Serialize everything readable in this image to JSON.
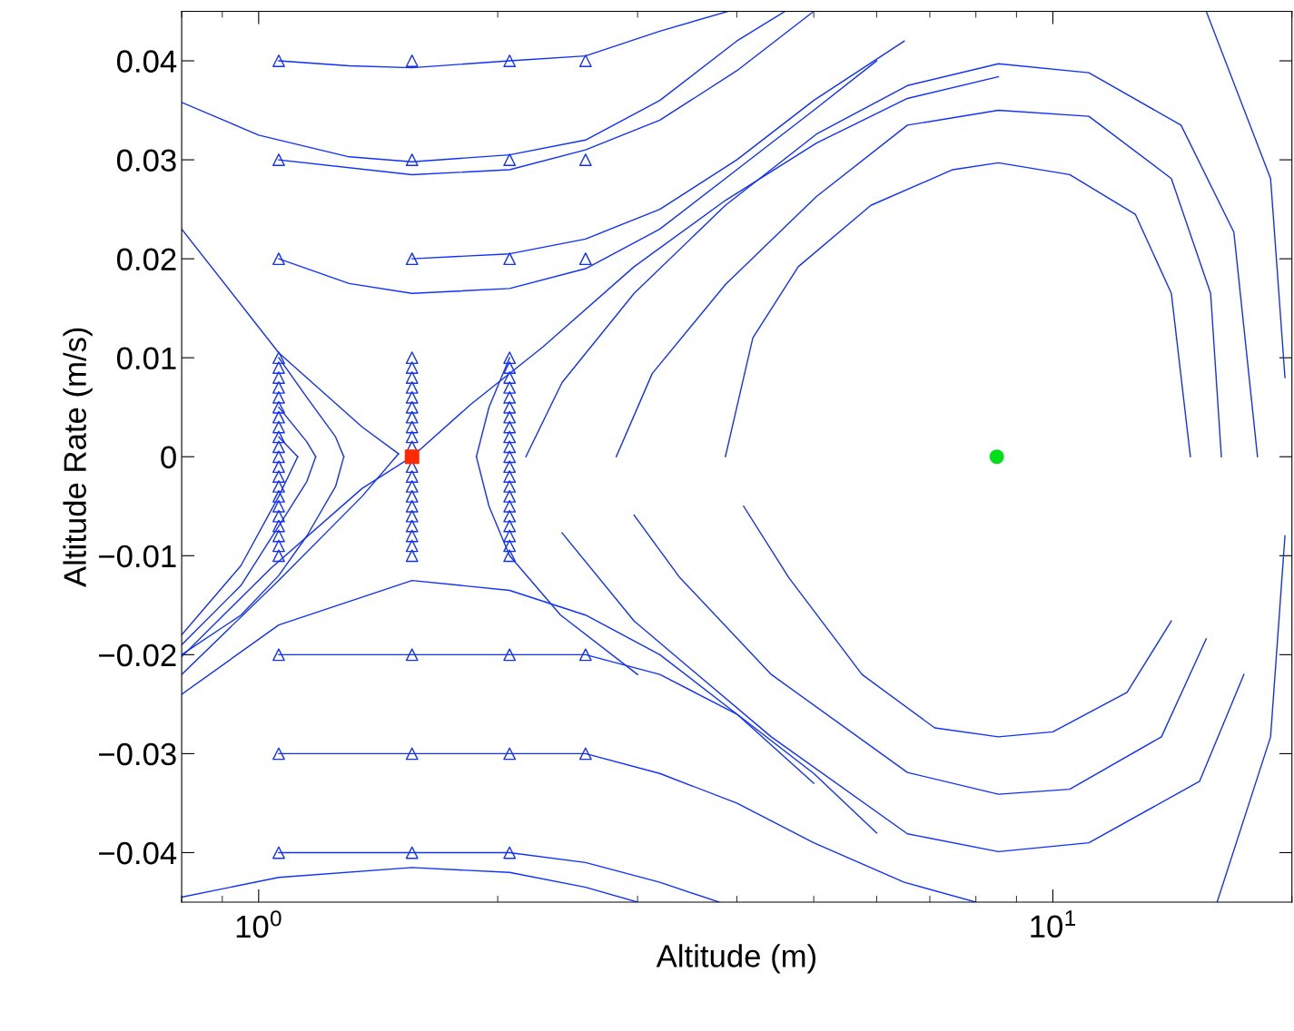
{
  "chart_data": {
    "type": "line",
    "xlabel": "Altitude (m)",
    "ylabel": "Altitude Rate (m/s)",
    "log": "x",
    "grid": false,
    "legend": false,
    "line_style": "solid",
    "marker": "none",
    "xlim": [
      0.8,
      20
    ],
    "ylim": [
      -0.045,
      0.045
    ],
    "xticks": [
      {
        "value": 0.8,
        "label": null
      },
      {
        "value": 0.9,
        "label": null
      },
      {
        "value": 1,
        "label": "10$^{0}$"
      },
      {
        "value": 2,
        "label": null
      },
      {
        "value": 3,
        "label": null
      },
      {
        "value": 4,
        "label": null
      },
      {
        "value": 5,
        "label": null
      },
      {
        "value": 6,
        "label": null
      },
      {
        "value": 7,
        "label": null
      },
      {
        "value": 8,
        "label": null
      },
      {
        "value": 9,
        "label": null
      },
      {
        "value": 10,
        "label": "10$^{1}$"
      },
      {
        "value": 20,
        "label": null
      }
    ],
    "yticks": [
      {
        "value": -0.04,
        "label": "−0.04"
      },
      {
        "value": -0.03,
        "label": "−0.03"
      },
      {
        "value": -0.02,
        "label": "−0.02"
      },
      {
        "value": -0.01,
        "label": "−0.01"
      },
      0,
      0.01,
      0.02,
      0.03,
      0.04
    ],
    "series": [
      {
        "color": "#1030ff",
        "x": [
          1.06,
          1.3,
          1.56,
          2.07,
          2.58,
          3.2,
          3.9
        ],
        "values": [
          0.04,
          0.0395,
          0.0393,
          0.04,
          0.0405,
          0.043,
          0.045
        ]
      },
      {
        "color": "#1030ff",
        "x": [
          0.8,
          1.0,
          1.3,
          1.56,
          2.07,
          2.58,
          3.2,
          4.0,
          4.6
        ],
        "values": [
          0.0358,
          0.0325,
          0.0303,
          0.0298,
          0.0305,
          0.032,
          0.036,
          0.042,
          0.045
        ]
      },
      {
        "color": "#1030ff",
        "x": [
          1.06,
          1.56,
          2.07,
          2.58,
          3.2,
          4.0,
          5.0
        ],
        "values": [
          0.03,
          0.0285,
          0.029,
          0.031,
          0.034,
          0.039,
          0.045
        ]
      },
      {
        "color": "#1030ff",
        "x": [
          1.06,
          1.3,
          1.56,
          2.07,
          2.58,
          3.2,
          4,
          5,
          6
        ],
        "values": [
          0.02,
          0.0175,
          0.0165,
          0.017,
          0.019,
          0.023,
          0.029,
          0.035,
          0.04
        ]
      },
      {
        "color": "#1030ff",
        "x": [
          1.56,
          2.07,
          2.58,
          3.2,
          4,
          5,
          6.5
        ],
        "values": [
          0.02,
          0.0205,
          0.022,
          0.025,
          0.03,
          0.036,
          0.042
        ]
      },
      {
        "color": "#1030ff",
        "x": [
          0.8,
          1.035,
          1.35,
          1.56,
          1.85,
          2.28,
          2.97,
          3.87,
          5.04,
          6.56,
          8.54
        ],
        "values": [
          -0.0202,
          -0.0113,
          -0.0032,
          0,
          0.0053,
          0.0111,
          0.0192,
          0.0259,
          0.0317,
          0.0362,
          0.0384
        ]
      },
      {
        "color": "#1030ff",
        "x": [
          0.8,
          1.06,
          1.35,
          1.5
        ],
        "values": [
          0.023,
          0.0105,
          0.003,
          0.0003
        ]
      },
      {
        "color": "#1030ff",
        "x": [
          0.8,
          1.06,
          1.35,
          1.5
        ],
        "values": [
          -0.022,
          -0.0125,
          -0.004,
          0.0003
        ]
      },
      {
        "color": "#1030ff",
        "x": [
          1.06,
          1.15,
          1.25,
          1.28
        ],
        "values": [
          0.01,
          0.006,
          0.002,
          0
        ]
      },
      {
        "color": "#1030ff",
        "x": [
          0.8,
          0.95,
          1.06,
          1.15,
          1.25,
          1.28
        ],
        "values": [
          -0.02,
          -0.016,
          -0.012,
          -0.008,
          -0.003,
          0
        ]
      },
      {
        "color": "#1030ff",
        "x": [
          1.06,
          1.15,
          1.18
        ],
        "values": [
          0.005,
          0.0015,
          0
        ]
      },
      {
        "color": "#1030ff",
        "x": [
          0.8,
          0.95,
          1.06,
          1.15,
          1.18
        ],
        "values": [
          -0.019,
          -0.013,
          -0.007,
          -0.0025,
          0
        ]
      },
      {
        "color": "#1030ff",
        "x": [
          1.06,
          1.12
        ],
        "values": [
          0.002,
          0
        ]
      },
      {
        "color": "#1030ff",
        "x": [
          0.8,
          0.95,
          1.06,
          1.12
        ],
        "values": [
          -0.018,
          -0.011,
          -0.004,
          0
        ]
      },
      {
        "color": "#1030ff",
        "x": [
          1.88,
          1.95,
          2.07
        ],
        "values": [
          0,
          0.005,
          0.01
        ]
      },
      {
        "color": "#1030ff",
        "x": [
          1.88,
          1.95,
          2.07,
          2.4,
          3.0
        ],
        "values": [
          0,
          -0.005,
          -0.01,
          -0.016,
          -0.022
        ]
      },
      {
        "color": "#1030ff",
        "x": [
          3.87,
          4.19,
          4.78,
          5.9,
          7.48,
          8.54,
          10.5,
          12.7,
          14.1,
          14.9
        ],
        "values": [
          0,
          0.012,
          0.0192,
          0.0254,
          0.029,
          0.0297,
          0.0285,
          0.0245,
          0.0165,
          0
        ]
      },
      {
        "color": "#1030ff",
        "x": [
          4.08,
          4.65,
          5.75,
          7.1,
          8.54,
          10.0,
          12.4,
          14.1
        ],
        "values": [
          -0.005,
          -0.0122,
          -0.022,
          -0.0274,
          -0.0283,
          -0.0278,
          -0.0238,
          -0.0166
        ]
      },
      {
        "color": "#1030ff",
        "x": [
          2.82,
          3.13,
          3.87,
          5.04,
          6.56,
          8.54,
          11.1,
          14.1,
          15.8,
          16.3
        ],
        "values": [
          0,
          0.0084,
          0.0174,
          0.0263,
          0.0335,
          0.035,
          0.0344,
          0.0281,
          0.0165,
          0
        ]
      },
      {
        "color": "#1030ff",
        "x": [
          2.97,
          3.39,
          4.42,
          6.56,
          8.54,
          10.5,
          13.7,
          15.6
        ],
        "values": [
          -0.0059,
          -0.0122,
          -0.022,
          -0.0319,
          -0.0341,
          -0.0336,
          -0.0283,
          -0.0184
        ]
      },
      {
        "color": "#1030ff",
        "x": [
          2.17,
          2.41,
          2.97,
          3.87,
          5.04,
          6.56,
          8.54,
          11.1,
          14.5,
          16.9,
          18.1
        ],
        "values": [
          0,
          0.0075,
          0.0165,
          0.0254,
          0.0326,
          0.0375,
          0.0397,
          0.0388,
          0.0335,
          0.0227,
          0
        ]
      },
      {
        "color": "#1030ff",
        "x": [
          2.41,
          2.97,
          4.42,
          6.56,
          8.54,
          11.1,
          15.3,
          17.4
        ],
        "values": [
          -0.0077,
          -0.0166,
          -0.0283,
          -0.0381,
          -0.0399,
          -0.039,
          -0.0328,
          -0.022
        ]
      },
      {
        "color": "#1030ff",
        "x": [
          15.6,
          18.8,
          19.6
        ],
        "values": [
          0.045,
          0.0281,
          0.008
        ]
      },
      {
        "color": "#1030ff",
        "x": [
          16.1,
          18.8,
          19.6
        ],
        "values": [
          -0.045,
          -0.0283,
          -0.008
        ]
      },
      {
        "color": "#1030ff",
        "x": [
          0.8,
          1.06,
          1.56,
          2.07,
          2.58,
          3.2,
          4.0,
          5.0
        ],
        "values": [
          -0.024,
          -0.017,
          -0.0125,
          -0.0135,
          -0.016,
          -0.02,
          -0.026,
          -0.033
        ]
      },
      {
        "color": "#1030ff",
        "x": [
          1.06,
          1.56,
          2.07,
          2.58,
          3.2,
          4.0,
          5.0,
          6.0
        ],
        "values": [
          -0.02,
          -0.02,
          -0.02,
          -0.02,
          -0.022,
          -0.026,
          -0.032,
          -0.038
        ]
      },
      {
        "color": "#1030ff",
        "x": [
          1.06,
          1.56,
          2.07,
          2.58,
          3.2,
          4.0,
          5.0,
          6.5,
          8
        ],
        "values": [
          -0.03,
          -0.03,
          -0.03,
          -0.03,
          -0.032,
          -0.035,
          -0.039,
          -0.043,
          -0.045
        ]
      },
      {
        "color": "#1030ff",
        "x": [
          1.06,
          1.56,
          2.07,
          2.58,
          3.2,
          3.8
        ],
        "values": [
          -0.04,
          -0.04,
          -0.04,
          -0.041,
          -0.043,
          -0.045
        ]
      },
      {
        "color": "#1030ff",
        "x": [
          0.8,
          1.06,
          1.56,
          2.07,
          2.58,
          3.0
        ],
        "values": [
          -0.0445,
          -0.0425,
          -0.0415,
          -0.042,
          -0.0435,
          -0.045
        ]
      },
      {
        "type": "scatter",
        "marker": "triangle",
        "color": "#1030ff",
        "x": [
          1.06,
          1.06,
          1.06,
          1.06,
          1.06,
          1.06,
          1.06,
          1.06,
          1.06,
          1.06,
          1.06,
          1.06,
          1.06,
          1.06,
          1.06,
          1.06,
          1.06,
          1.06,
          1.06,
          1.06,
          1.06,
          1.06,
          1.06,
          1.06,
          1.06,
          1.06,
          1.06,
          1.56,
          1.56,
          1.56,
          1.56,
          1.56,
          1.56,
          1.56,
          1.56,
          1.56,
          1.56,
          1.56,
          1.56,
          1.56,
          1.56,
          1.56,
          1.56,
          1.56,
          1.56,
          1.56,
          1.56,
          1.56,
          1.56,
          1.56,
          1.56,
          1.56,
          1.56,
          2.07,
          2.07,
          2.07,
          2.07,
          2.07,
          2.07,
          2.07,
          2.07,
          2.07,
          2.07,
          2.07,
          2.07,
          2.07,
          2.07,
          2.07,
          2.07,
          2.07,
          2.07,
          2.07,
          2.07,
          2.07,
          2.07,
          2.07,
          2.07,
          2.07,
          2.07,
          2.07,
          2.58,
          2.58,
          2.58,
          2.58,
          2.58
        ],
        "values": [
          0.04,
          0.03,
          0.02,
          0.01,
          0.009,
          0.008,
          0.007,
          0.006,
          0.005,
          0.004,
          0.003,
          0.002,
          0.001,
          0,
          -0.001,
          -0.002,
          -0.003,
          -0.004,
          -0.005,
          -0.006,
          -0.007,
          -0.008,
          -0.009,
          -0.01,
          -0.02,
          -0.03,
          -0.04,
          0.04,
          0.03,
          0.02,
          0.01,
          0.009,
          0.008,
          0.007,
          0.006,
          0.005,
          0.004,
          0.003,
          0.002,
          0.001,
          -0.001,
          -0.002,
          -0.003,
          -0.004,
          -0.005,
          -0.006,
          -0.007,
          -0.008,
          -0.009,
          -0.01,
          -0.02,
          -0.03,
          -0.04,
          0.04,
          0.03,
          0.02,
          0.01,
          0.009,
          0.008,
          0.007,
          0.006,
          0.005,
          0.004,
          0.003,
          0.002,
          0.001,
          0,
          -0.001,
          -0.002,
          -0.003,
          -0.004,
          -0.005,
          -0.006,
          -0.007,
          -0.008,
          -0.009,
          -0.01,
          -0.02,
          -0.03,
          -0.04,
          0.04,
          0.03,
          0.02,
          -0.02,
          -0.03
        ]
      },
      {
        "type": "scatter",
        "marker": "square",
        "color": "#ff2a00",
        "x": [
          1.56
        ],
        "values": [
          0
        ]
      },
      {
        "type": "scatter",
        "marker": "circle",
        "color": "#00e01a",
        "x": [
          8.5
        ],
        "values": [
          0
        ]
      }
    ]
  }
}
